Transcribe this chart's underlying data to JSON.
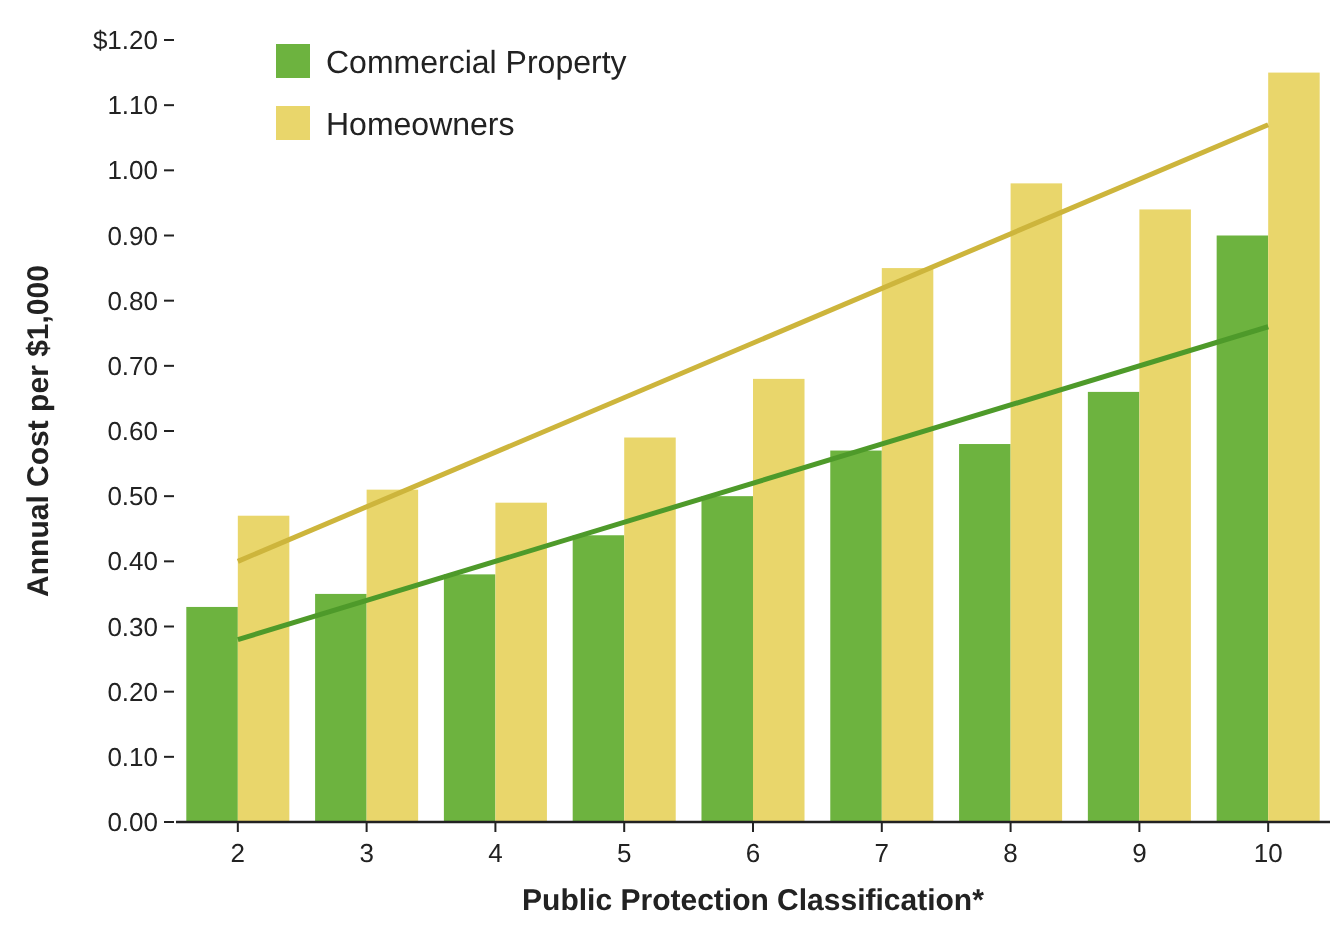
{
  "chart_data": {
    "type": "bar",
    "xlabel": "Public Protection Classification*",
    "ylabel": "Annual Cost per $1,000",
    "categories": [
      "2",
      "3",
      "4",
      "5",
      "6",
      "7",
      "8",
      "9",
      "10"
    ],
    "series": [
      {
        "name": "Commercial Property",
        "color": "#6db33f",
        "values": [
          0.33,
          0.35,
          0.38,
          0.44,
          0.5,
          0.57,
          0.58,
          0.66,
          0.9
        ]
      },
      {
        "name": "Homeowners",
        "color": "#e9d66b",
        "values": [
          0.47,
          0.51,
          0.49,
          0.59,
          0.68,
          0.85,
          0.98,
          0.94,
          1.15
        ]
      },
      {
        "type": "line",
        "color": "#4e9a2a",
        "x": [
          "2",
          "10"
        ],
        "values": [
          0.28,
          0.76
        ]
      },
      {
        "type": "line",
        "color": "#cdb53c",
        "x": [
          "2",
          "10"
        ],
        "values": [
          0.4,
          1.07
        ]
      }
    ],
    "ylim": [
      0,
      1.2
    ],
    "yticks": [
      {
        "value": 0,
        "label": "0.00"
      },
      {
        "value": 0.1,
        "label": "0.10"
      },
      {
        "value": 0.2,
        "label": "0.20"
      },
      {
        "value": 0.3,
        "label": "0.30"
      },
      {
        "value": 0.4,
        "label": "0.40"
      },
      {
        "value": 0.5,
        "label": "0.50"
      },
      {
        "value": 0.6,
        "label": "0.60"
      },
      {
        "value": 0.7,
        "label": "0.70"
      },
      {
        "value": 0.8,
        "label": "0.80"
      },
      {
        "value": 0.9,
        "label": "0.90"
      },
      {
        "value": 1.0,
        "label": "1.00"
      },
      {
        "value": 1.1,
        "label": "1.10"
      },
      {
        "value": 1.2,
        "label": "$1.20"
      }
    ],
    "grid": false,
    "legend": "top left"
  }
}
